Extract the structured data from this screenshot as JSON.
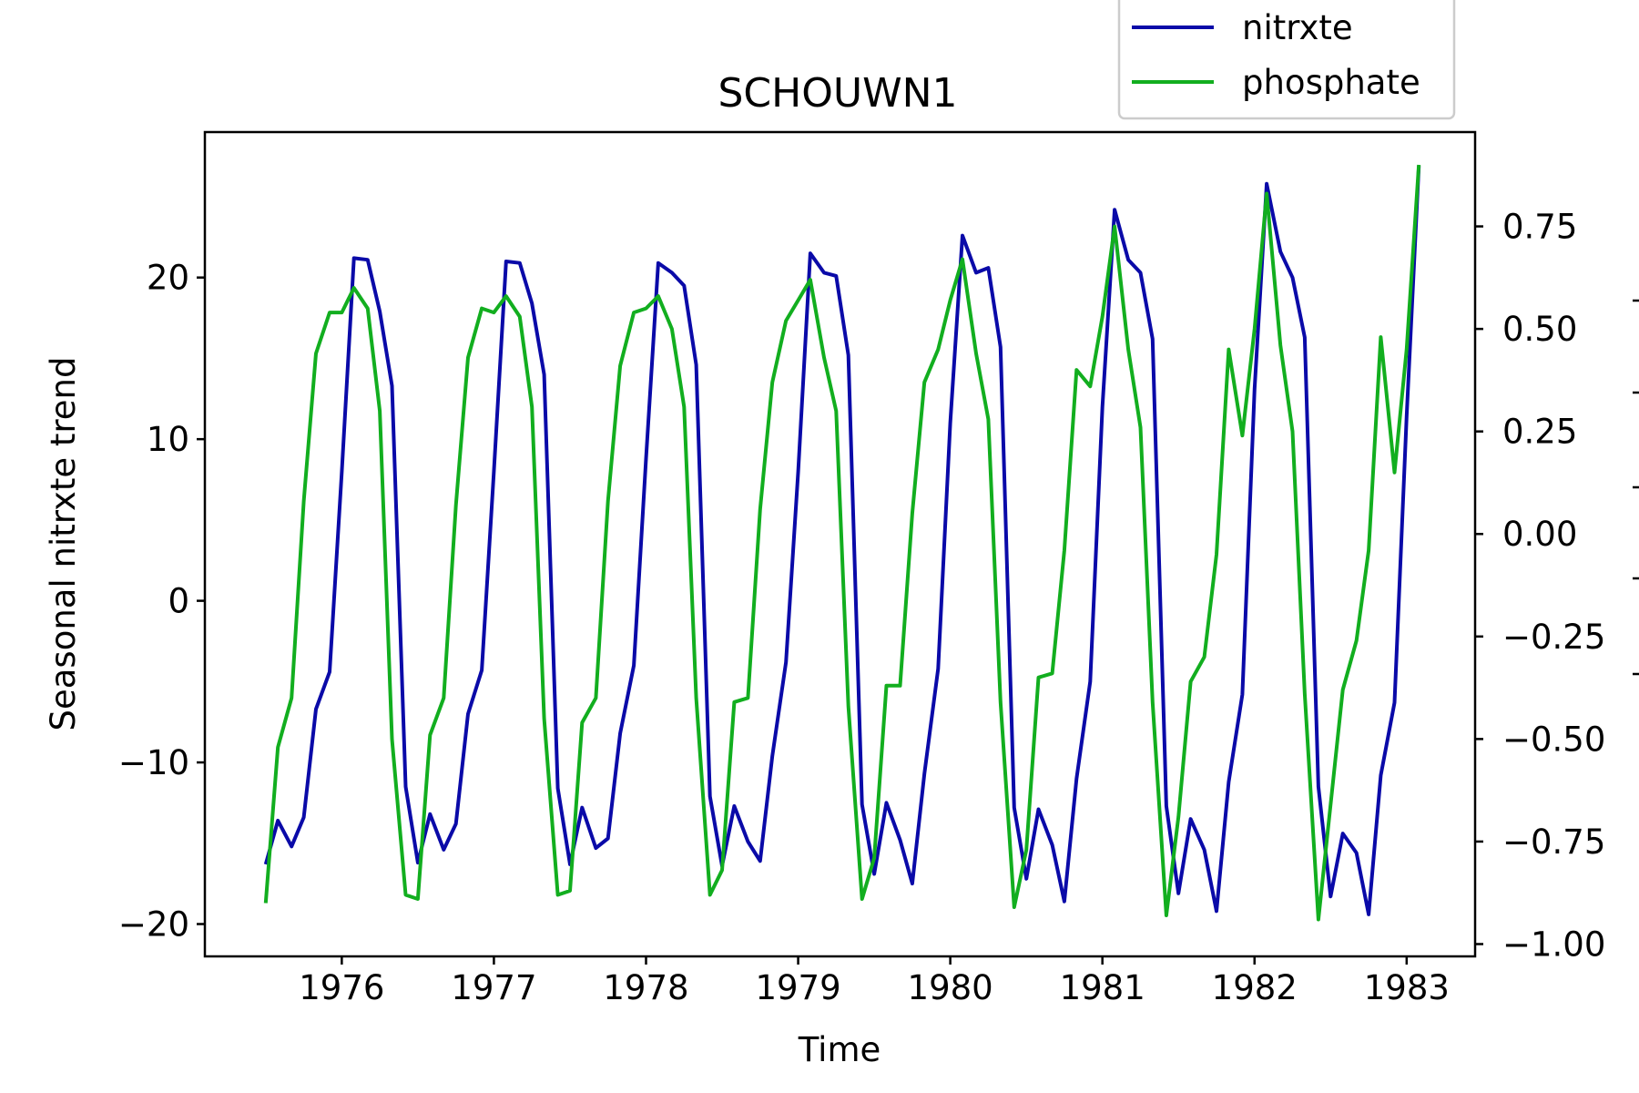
{
  "chart_data": {
    "type": "line",
    "title": "SCHOUWN1",
    "xlabel": "Time",
    "ylabel": "Seasonal nitrxte trend",
    "y2label": "",
    "xlim": [
      1975.1,
      1983.45
    ],
    "ylim": [
      -22,
      29
    ],
    "y2lim": [
      -1.03,
      0.98
    ],
    "x_ticks": [
      1976,
      1977,
      1978,
      1979,
      1980,
      1981,
      1982,
      1983
    ],
    "y_ticks": [
      -20,
      -10,
      0,
      10,
      20
    ],
    "y2_ticks": [
      -1.0,
      -0.75,
      -0.5,
      -0.25,
      0.0,
      0.25,
      0.5,
      0.75
    ],
    "y2_tick_labels": [
      "−1.00",
      "−0.75",
      "−0.50",
      "−0.25",
      "0.00",
      "0.25",
      "0.50",
      "0.75"
    ],
    "y_tick_labels": [
      "−20",
      "−10",
      "0",
      "10",
      "20"
    ],
    "grid": false,
    "legend_position": "above-top-right",
    "series": [
      {
        "name": "nitrxte",
        "axis": "left",
        "color": "#0a0aa8",
        "x": [
          1975.5,
          1975.58,
          1975.67,
          1975.75,
          1975.83,
          1975.92,
          1976.0,
          1976.08,
          1976.17,
          1976.25,
          1976.33,
          1976.42,
          1976.5,
          1976.58,
          1976.67,
          1976.75,
          1976.83,
          1976.92,
          1977.0,
          1977.08,
          1977.17,
          1977.25,
          1977.33,
          1977.42,
          1977.5,
          1977.58,
          1977.67,
          1977.75,
          1977.83,
          1977.92,
          1978.0,
          1978.08,
          1978.17,
          1978.25,
          1978.33,
          1978.42,
          1978.5,
          1978.58,
          1978.67,
          1978.75,
          1978.83,
          1978.92,
          1979.0,
          1979.08,
          1979.17,
          1979.25,
          1979.33,
          1979.42,
          1979.5,
          1979.58,
          1979.67,
          1979.75,
          1979.83,
          1979.92,
          1980.0,
          1980.08,
          1980.17,
          1980.25,
          1980.33,
          1980.42,
          1980.5,
          1980.58,
          1980.67,
          1980.75,
          1980.83,
          1980.92,
          1981.0,
          1981.08,
          1981.17,
          1981.25,
          1981.33,
          1981.42,
          1981.5,
          1981.58,
          1981.67,
          1981.75,
          1981.83,
          1981.92,
          1982.0,
          1982.08,
          1982.17,
          1982.25,
          1982.33,
          1982.42,
          1982.5,
          1982.58,
          1982.67,
          1982.75,
          1982.83,
          1982.92,
          1983.0,
          1983.08
        ],
        "values": [
          -16.3,
          -13.6,
          -15.2,
          -13.4,
          -6.7,
          -4.4,
          8.0,
          21.2,
          21.1,
          17.9,
          13.3,
          -11.5,
          -16.2,
          -13.2,
          -15.4,
          -13.8,
          -7.0,
          -4.3,
          8.0,
          21.0,
          20.9,
          18.4,
          14.0,
          -11.6,
          -16.3,
          -12.8,
          -15.3,
          -14.7,
          -8.2,
          -4.0,
          8.8,
          20.9,
          20.3,
          19.5,
          14.6,
          -12.1,
          -16.4,
          -12.7,
          -14.9,
          -16.1,
          -9.6,
          -3.8,
          8.0,
          21.5,
          20.3,
          20.1,
          15.2,
          -12.6,
          -16.9,
          -12.5,
          -14.8,
          -17.5,
          -10.7,
          -4.2,
          11.0,
          22.6,
          20.3,
          20.6,
          15.7,
          -12.8,
          -17.2,
          -12.9,
          -15.1,
          -18.6,
          -11.0,
          -5.0,
          12.0,
          24.2,
          21.1,
          20.3,
          16.2,
          -12.7,
          -18.1,
          -13.5,
          -15.4,
          -19.2,
          -11.2,
          -5.8,
          13.1,
          25.8,
          21.6,
          20.0,
          16.3,
          -11.5,
          -18.3,
          -14.4,
          -15.6,
          -19.4,
          -10.8,
          -6.3,
          11.4,
          26.9
        ]
      },
      {
        "name": "phosphate",
        "axis": "right",
        "color": "#12ae1f",
        "x": [
          1975.5,
          1975.58,
          1975.67,
          1975.75,
          1975.83,
          1975.92,
          1976.0,
          1976.08,
          1976.17,
          1976.25,
          1976.33,
          1976.42,
          1976.5,
          1976.58,
          1976.67,
          1976.75,
          1976.83,
          1976.92,
          1977.0,
          1977.08,
          1977.17,
          1977.25,
          1977.33,
          1977.42,
          1977.5,
          1977.58,
          1977.67,
          1977.75,
          1977.83,
          1977.92,
          1978.0,
          1978.08,
          1978.17,
          1978.25,
          1978.33,
          1978.42,
          1978.5,
          1978.58,
          1978.67,
          1978.75,
          1978.83,
          1978.92,
          1979.0,
          1979.08,
          1979.17,
          1979.25,
          1979.33,
          1979.42,
          1979.5,
          1979.58,
          1979.67,
          1979.75,
          1979.83,
          1979.92,
          1980.0,
          1980.08,
          1980.17,
          1980.25,
          1980.33,
          1980.42,
          1980.5,
          1980.58,
          1980.67,
          1980.75,
          1980.83,
          1980.92,
          1981.0,
          1981.08,
          1981.17,
          1981.25,
          1981.33,
          1981.42,
          1981.5,
          1981.58,
          1981.67,
          1981.75,
          1981.83,
          1981.92,
          1982.0,
          1982.08,
          1982.17,
          1982.25,
          1982.33,
          1982.42,
          1982.5,
          1982.58,
          1982.67,
          1982.75,
          1982.83,
          1982.92,
          1983.0,
          1983.08
        ],
        "values": [
          -0.9,
          -0.52,
          -0.4,
          0.08,
          0.44,
          0.54,
          0.54,
          0.6,
          0.55,
          0.3,
          -0.5,
          -0.88,
          -0.89,
          -0.49,
          -0.4,
          0.07,
          0.43,
          0.55,
          0.54,
          0.58,
          0.53,
          0.31,
          -0.45,
          -0.88,
          -0.87,
          -0.46,
          -0.4,
          0.08,
          0.41,
          0.54,
          0.55,
          0.58,
          0.5,
          0.31,
          -0.4,
          -0.88,
          -0.82,
          -0.41,
          -0.4,
          0.06,
          0.37,
          0.52,
          0.57,
          0.62,
          0.43,
          0.3,
          -0.42,
          -0.89,
          -0.79,
          -0.37,
          -0.37,
          0.05,
          0.37,
          0.45,
          0.57,
          0.67,
          0.44,
          0.28,
          -0.41,
          -0.91,
          -0.77,
          -0.35,
          -0.34,
          -0.04,
          0.4,
          0.36,
          0.53,
          0.75,
          0.45,
          0.26,
          -0.41,
          -0.93,
          -0.69,
          -0.36,
          -0.3,
          -0.05,
          0.45,
          0.24,
          0.5,
          0.83,
          0.46,
          0.25,
          -0.39,
          -0.94,
          -0.66,
          -0.38,
          -0.26,
          -0.04,
          0.48,
          0.15,
          0.45,
          0.9
        ]
      }
    ]
  }
}
